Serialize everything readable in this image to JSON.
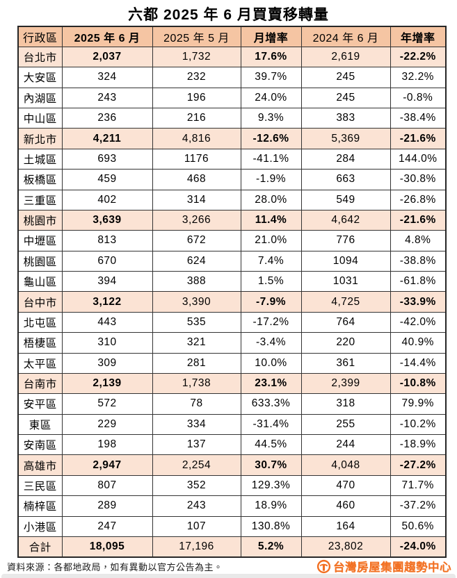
{
  "title": "六都 2025 年 6 月買賣移轉量",
  "chart_data": {
    "type": "table",
    "title": "六都 2025 年 6 月買賣移轉量",
    "headers": [
      "行政區",
      "2025 年 6 月",
      "2025 年 5 月",
      "月增率",
      "2024 年 6 月",
      "年增率"
    ],
    "bold_columns": [
      1,
      3,
      5
    ],
    "highlight_rows": [
      "台北市",
      "新北市",
      "桃園市",
      "台中市",
      "台南市",
      "高雄市",
      "合計"
    ],
    "rows": [
      [
        "台北市",
        "2,037",
        "1,732",
        "17.6%",
        "2,619",
        "-22.2%"
      ],
      [
        "大安區",
        "324",
        "232",
        "39.7%",
        "245",
        "32.2%"
      ],
      [
        "內湖區",
        "243",
        "196",
        "24.0%",
        "245",
        "-0.8%"
      ],
      [
        "中山區",
        "236",
        "216",
        "9.3%",
        "383",
        "-38.4%"
      ],
      [
        "新北市",
        "4,211",
        "4,816",
        "-12.6%",
        "5,369",
        "-21.6%"
      ],
      [
        "土城區",
        "693",
        "1176",
        "-41.1%",
        "284",
        "144.0%"
      ],
      [
        "板橋區",
        "459",
        "468",
        "-1.9%",
        "663",
        "-30.8%"
      ],
      [
        "三重區",
        "402",
        "314",
        "28.0%",
        "549",
        "-26.8%"
      ],
      [
        "桃園市",
        "3,639",
        "3,266",
        "11.4%",
        "4,642",
        "-21.6%"
      ],
      [
        "中壢區",
        "813",
        "672",
        "21.0%",
        "776",
        "4.8%"
      ],
      [
        "桃園區",
        "670",
        "624",
        "7.4%",
        "1094",
        "-38.8%"
      ],
      [
        "龜山區",
        "394",
        "388",
        "1.5%",
        "1031",
        "-61.8%"
      ],
      [
        "台中市",
        "3,122",
        "3,390",
        "-7.9%",
        "4,725",
        "-33.9%"
      ],
      [
        "北屯區",
        "443",
        "535",
        "-17.2%",
        "764",
        "-42.0%"
      ],
      [
        "梧棲區",
        "310",
        "321",
        "-3.4%",
        "220",
        "40.9%"
      ],
      [
        "太平區",
        "309",
        "281",
        "10.0%",
        "361",
        "-14.4%"
      ],
      [
        "台南市",
        "2,139",
        "1,738",
        "23.1%",
        "2,399",
        "-10.8%"
      ],
      [
        "安平區",
        "572",
        "78",
        "633.3%",
        "318",
        "79.9%"
      ],
      [
        "東區",
        "229",
        "334",
        "-31.4%",
        "255",
        "-10.2%"
      ],
      [
        "安南區",
        "198",
        "137",
        "44.5%",
        "244",
        "-18.9%"
      ],
      [
        "高雄市",
        "2,947",
        "2,254",
        "30.7%",
        "4,048",
        "-27.2%"
      ],
      [
        "三民區",
        "807",
        "352",
        "129.3%",
        "470",
        "71.7%"
      ],
      [
        "楠梓區",
        "289",
        "243",
        "18.9%",
        "460",
        "-37.2%"
      ],
      [
        "小港區",
        "247",
        "107",
        "130.8%",
        "164",
        "50.6%"
      ],
      [
        "合計",
        "18,095",
        "17,196",
        "5.2%",
        "23,802",
        "-24.0%"
      ]
    ]
  },
  "footer": {
    "source": "資料來源：各都地政局，如有異動以官方公告為主。",
    "brand": "台灣房屋集團趨勢中心"
  },
  "colors": {
    "header_bg": "#f5c5a3",
    "highlight_bg": "#fbe3d4",
    "border": "#333333",
    "brand_orange": "#f26f21"
  }
}
